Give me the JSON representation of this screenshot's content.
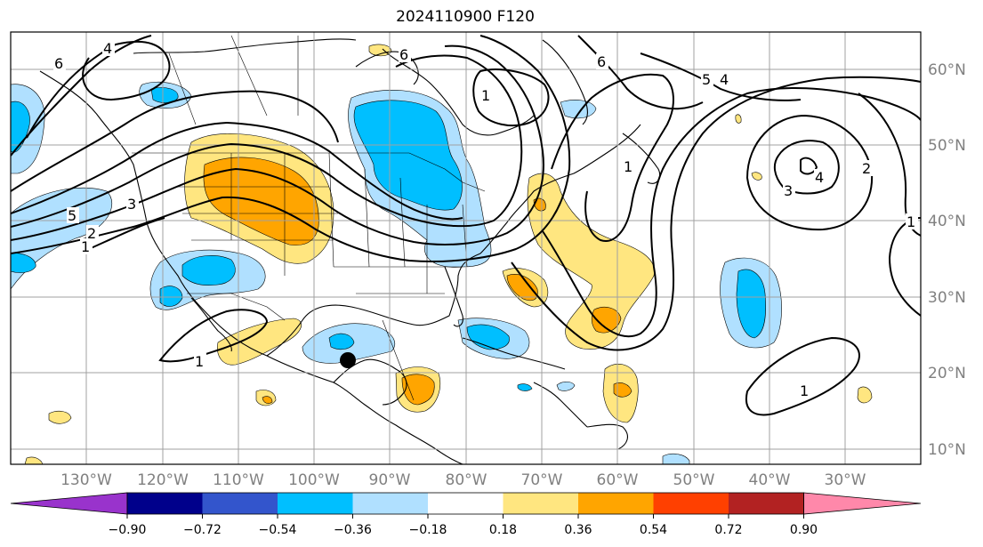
{
  "title": "2024110900 F120",
  "lon_labels": [
    "130°W",
    "120°W",
    "110°W",
    "100°W",
    "90°W",
    "80°W",
    "70°W",
    "60°W",
    "50°W",
    "40°W",
    "30°W"
  ],
  "lat_labels": [
    "60°N",
    "50°N",
    "40°N",
    "30°N",
    "20°N",
    "10°N"
  ],
  "colorbar": {
    "ticks": [
      "−0.90",
      "−0.72",
      "−0.54",
      "−0.36",
      "−0.18",
      "0.18",
      "0.36",
      "0.54",
      "0.72",
      "0.90"
    ],
    "colors": [
      "#9933cc",
      "#00008b",
      "#3355cc",
      "#00bfff",
      "#b0e0ff",
      "#ffffff",
      "#ffe680",
      "#ffa500",
      "#ff4000",
      "#b22222",
      "#ff88aa"
    ]
  },
  "contour_labels": [
    "4",
    "6",
    "6",
    "6",
    "5",
    "3",
    "5",
    "2",
    "1",
    "1",
    "1",
    "1",
    "4",
    "3",
    "2",
    "1",
    "4",
    "1"
  ],
  "shading_colors": {
    "light_blue": "#b0e0ff",
    "blue": "#00bfff",
    "light_yellow": "#ffe680",
    "orange": "#ffa500"
  },
  "marker_color": "#000000"
}
